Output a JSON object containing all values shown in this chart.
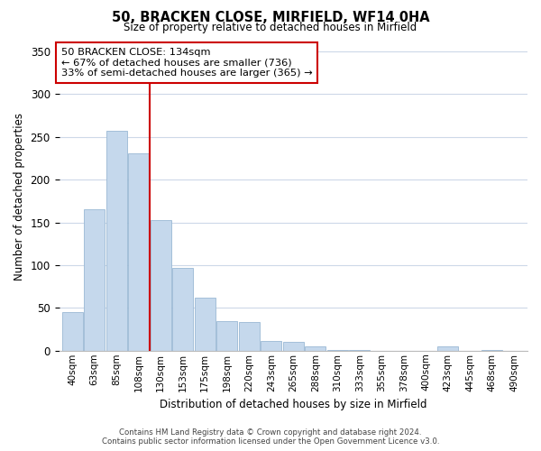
{
  "title": "50, BRACKEN CLOSE, MIRFIELD, WF14 0HA",
  "subtitle": "Size of property relative to detached houses in Mirfield",
  "xlabel": "Distribution of detached houses by size in Mirfield",
  "ylabel": "Number of detached properties",
  "bar_labels": [
    "40sqm",
    "63sqm",
    "85sqm",
    "108sqm",
    "130sqm",
    "153sqm",
    "175sqm",
    "198sqm",
    "220sqm",
    "243sqm",
    "265sqm",
    "288sqm",
    "310sqm",
    "333sqm",
    "355sqm",
    "378sqm",
    "400sqm",
    "423sqm",
    "445sqm",
    "468sqm",
    "490sqm"
  ],
  "bar_values": [
    45,
    165,
    257,
    231,
    153,
    97,
    62,
    35,
    33,
    11,
    10,
    5,
    1,
    1,
    0,
    0,
    0,
    5,
    0,
    1,
    0
  ],
  "bar_color": "#c5d8ec",
  "bar_edge_color": "#9ab8d4",
  "vline_color": "#cc0000",
  "ylim": [
    0,
    360
  ],
  "yticks": [
    0,
    50,
    100,
    150,
    200,
    250,
    300,
    350
  ],
  "annotation_title": "50 BRACKEN CLOSE: 134sqm",
  "annotation_line1": "← 67% of detached houses are smaller (736)",
  "annotation_line2": "33% of semi-detached houses are larger (365) →",
  "annotation_box_color": "#ffffff",
  "annotation_box_edge": "#cc0000",
  "footer_line1": "Contains HM Land Registry data © Crown copyright and database right 2024.",
  "footer_line2": "Contains public sector information licensed under the Open Government Licence v3.0.",
  "background_color": "#ffffff",
  "grid_color": "#cdd8e8"
}
